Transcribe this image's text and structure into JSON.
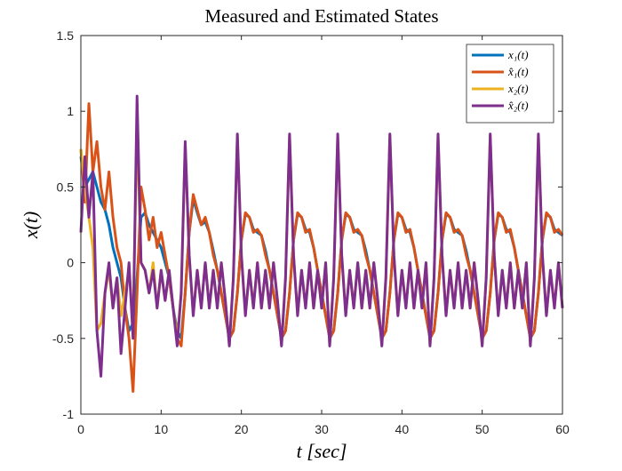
{
  "chart_data": {
    "type": "line",
    "title": "Measured and Estimated States",
    "x_label": "t [sec]",
    "y_label": "x(t)",
    "x": [
      0,
      0.5,
      1,
      1.5,
      2,
      2.5,
      3,
      3.5,
      4,
      4.5,
      5,
      5.5,
      6,
      6.5,
      7,
      7.5,
      8,
      8.5,
      9,
      9.5,
      10,
      10.5,
      11,
      11.5,
      12,
      12.5,
      13,
      13.5,
      14,
      14.5,
      15,
      15.5,
      16,
      16.5,
      17,
      17.5,
      18,
      18.5,
      19,
      19.5,
      20,
      20.5,
      21,
      21.5,
      22,
      22.5,
      23,
      23.5,
      24,
      24.5,
      25,
      25.5,
      26,
      26.5,
      27,
      27.5,
      28,
      28.5,
      29,
      29.5,
      30,
      30.5,
      31,
      31.5,
      32,
      32.5,
      33,
      33.5,
      34,
      34.5,
      35,
      35.5,
      36,
      36.5,
      37,
      37.5,
      38,
      38.5,
      39,
      39.5,
      40,
      40.5,
      41,
      41.5,
      42,
      42.5,
      43,
      43.5,
      44,
      44.5,
      45,
      45.5,
      46,
      46.5,
      47,
      47.5,
      48,
      48.5,
      49,
      49.5,
      50,
      50.5,
      51,
      51.5,
      52,
      52.5,
      53,
      53.5,
      54,
      54.5,
      55,
      55.5,
      56,
      56.5,
      57,
      57.5,
      58,
      58.5,
      59,
      59.5,
      60
    ],
    "series": [
      {
        "name": "x₁(t)",
        "color": "#0072BD",
        "values": [
          0.7,
          0.5,
          0.55,
          0.6,
          0.5,
          0.4,
          0.35,
          0.25,
          0.1,
          0,
          -0.1,
          -0.3,
          -0.45,
          -0.4,
          -0.1,
          0.3,
          0.33,
          0.25,
          0.2,
          0.15,
          0.1,
          0,
          -0.1,
          -0.3,
          -0.45,
          -0.5,
          -0.2,
          0.2,
          0.42,
          0.33,
          0.25,
          0.27,
          0.2,
          0.08,
          -0.05,
          -0.2,
          -0.35,
          -0.5,
          -0.45,
          -0.2,
          0.15,
          0.32,
          0.3,
          0.22,
          0.2,
          0.18,
          0.08,
          -0.05,
          -0.2,
          -0.35,
          -0.5,
          -0.45,
          -0.2,
          0.15,
          0.32,
          0.3,
          0.22,
          0.2,
          0.1,
          -0.05,
          -0.2,
          -0.35,
          -0.5,
          -0.45,
          -0.2,
          0.15,
          0.32,
          0.3,
          0.22,
          0.2,
          0.18,
          0.08,
          -0.05,
          -0.2,
          -0.35,
          -0.5,
          -0.45,
          -0.2,
          0.15,
          0.32,
          0.3,
          0.22,
          0.2,
          0.1,
          -0.05,
          -0.2,
          -0.35,
          -0.5,
          -0.45,
          -0.2,
          0.15,
          0.32,
          0.3,
          0.22,
          0.2,
          0.18,
          0.08,
          -0.05,
          -0.2,
          -0.35,
          -0.5,
          -0.45,
          -0.2,
          0.15,
          0.32,
          0.3,
          0.22,
          0.2,
          0.1,
          -0.05,
          -0.2,
          -0.35,
          -0.5,
          -0.45,
          -0.2,
          0.15,
          0.32,
          0.3,
          0.22,
          0.2,
          0.18
        ]
      },
      {
        "name": "x̂₁(t)",
        "color": "#D95319",
        "values": [
          0.75,
          0.4,
          1.05,
          0.6,
          0.8,
          0.5,
          0.35,
          0.6,
          0.3,
          0.1,
          0,
          -0.3,
          -0.5,
          -0.85,
          -0.2,
          0.5,
          0.35,
          0.15,
          0.3,
          0.1,
          0.2,
          0.05,
          -0.1,
          -0.3,
          -0.5,
          -0.55,
          -0.2,
          0.2,
          0.45,
          0.35,
          0.25,
          0.3,
          0.2,
          0.05,
          -0.05,
          -0.2,
          -0.35,
          -0.5,
          -0.45,
          -0.2,
          0.15,
          0.33,
          0.3,
          0.2,
          0.22,
          0.18,
          0.05,
          -0.05,
          -0.2,
          -0.35,
          -0.5,
          -0.45,
          -0.2,
          0.15,
          0.33,
          0.3,
          0.2,
          0.22,
          0.1,
          -0.05,
          -0.2,
          -0.35,
          -0.5,
          -0.45,
          -0.2,
          0.15,
          0.33,
          0.3,
          0.2,
          0.22,
          0.18,
          0.05,
          -0.05,
          -0.2,
          -0.35,
          -0.5,
          -0.45,
          -0.2,
          0.15,
          0.33,
          0.3,
          0.2,
          0.22,
          0.1,
          -0.05,
          -0.2,
          -0.35,
          -0.5,
          -0.45,
          -0.2,
          0.15,
          0.33,
          0.3,
          0.2,
          0.22,
          0.18,
          0.05,
          -0.05,
          -0.2,
          -0.35,
          -0.5,
          -0.45,
          -0.2,
          0.15,
          0.33,
          0.3,
          0.2,
          0.22,
          0.1,
          -0.05,
          -0.2,
          -0.35,
          -0.5,
          -0.45,
          -0.2,
          0.15,
          0.33,
          0.3,
          0.2,
          0.22,
          0.18
        ]
      },
      {
        "name": "x₂(t)",
        "color": "#EDB120",
        "values": [
          0.75,
          0.5,
          0.3,
          0.1,
          -0.45,
          -0.4,
          -0.2,
          -0.05,
          -0.3,
          -0.1,
          -0.35,
          -0.2,
          -0.05,
          -0.4,
          0.9,
          0,
          -0.05,
          -0.2,
          0,
          -0.3,
          -0.05,
          -0.25,
          -0.05,
          -0.3,
          -0.5,
          -0.2,
          0.78,
          0.05,
          -0.34,
          -0.05,
          -0.29,
          0,
          -0.3,
          -0.05,
          -0.3,
          0,
          -0.25,
          -0.54,
          -0.1,
          0.84,
          0.05,
          -0.34,
          -0.05,
          -0.29,
          0,
          -0.3,
          -0.05,
          -0.3,
          0,
          -0.25,
          -0.54,
          -0.1,
          0.84,
          0.05,
          -0.34,
          -0.05,
          -0.29,
          0,
          -0.3,
          -0.05,
          -0.3,
          0,
          -0.54,
          -0.1,
          0.84,
          0.05,
          -0.34,
          -0.05,
          -0.29,
          0,
          -0.3,
          -0.05,
          -0.3,
          0,
          -0.25,
          -0.54,
          -0.1,
          0.84,
          0.05,
          -0.34,
          -0.05,
          -0.29,
          0,
          -0.3,
          -0.05,
          -0.3,
          0,
          -0.54,
          -0.1,
          0.84,
          0.05,
          -0.34,
          -0.05,
          -0.29,
          0,
          -0.3,
          -0.05,
          -0.3,
          0,
          -0.25,
          -0.54,
          -0.1,
          0.84,
          0.05,
          -0.34,
          -0.05,
          -0.29,
          0,
          -0.3,
          -0.05,
          -0.3,
          0,
          -0.54,
          -0.1,
          0.84,
          0.05,
          -0.34,
          -0.05,
          -0.29,
          0,
          -0.3
        ]
      },
      {
        "name": "x̂₂(t)",
        "color": "#7E2F8E",
        "values": [
          0.2,
          0.7,
          0.3,
          0.6,
          -0.45,
          -0.75,
          -0.2,
          0,
          -0.3,
          -0.1,
          -0.6,
          -0.3,
          0,
          -0.5,
          1.1,
          0,
          -0.05,
          -0.2,
          -0.05,
          -0.3,
          -0.05,
          -0.25,
          -0.05,
          -0.3,
          -0.55,
          -0.2,
          0.8,
          0.05,
          -0.35,
          -0.05,
          -0.3,
          0,
          -0.3,
          -0.05,
          -0.3,
          0,
          -0.25,
          -0.55,
          -0.1,
          0.85,
          0.05,
          -0.35,
          -0.05,
          -0.3,
          0,
          -0.3,
          -0.05,
          -0.3,
          0,
          -0.25,
          -0.55,
          -0.1,
          0.85,
          0.05,
          -0.35,
          -0.05,
          -0.3,
          0,
          -0.3,
          -0.05,
          -0.3,
          0,
          -0.55,
          -0.1,
          0.85,
          0.05,
          -0.35,
          -0.05,
          -0.3,
          0,
          -0.3,
          -0.05,
          -0.3,
          0,
          -0.25,
          -0.55,
          -0.1,
          0.85,
          0.05,
          -0.35,
          -0.05,
          -0.3,
          0,
          -0.3,
          -0.05,
          -0.3,
          0,
          -0.55,
          -0.1,
          0.85,
          0.05,
          -0.35,
          -0.05,
          -0.3,
          0,
          -0.3,
          -0.05,
          -0.3,
          0,
          -0.25,
          -0.55,
          -0.1,
          0.85,
          0.05,
          -0.35,
          -0.05,
          -0.3,
          0,
          -0.3,
          -0.05,
          -0.3,
          0,
          -0.55,
          -0.1,
          0.85,
          0.05,
          -0.35,
          -0.05,
          -0.3,
          0,
          -0.3
        ]
      }
    ],
    "xlim": [
      0,
      60
    ],
    "xticks": [
      0,
      10,
      20,
      30,
      40,
      50,
      60
    ],
    "ylim": [
      -1,
      1.5
    ],
    "yticks": [
      -1,
      -0.5,
      0,
      0.5,
      1,
      1.5
    ],
    "grid": false,
    "legend": "top-right"
  }
}
